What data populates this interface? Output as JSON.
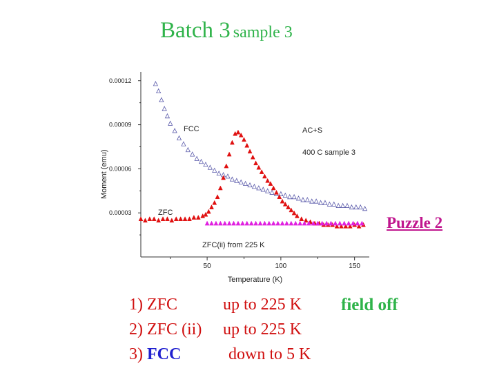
{
  "slide": {
    "title_main": "Batch 3",
    "title_sub": "sample 3",
    "puzzle": "Puzzle 2",
    "field_off": "field off",
    "steps": [
      {
        "num": "1)",
        "label": "ZFC",
        "detail": "up to 225 K"
      },
      {
        "num": "2)",
        "label": "ZFC (ii)",
        "detail": "up to 225 K"
      },
      {
        "num": "3)",
        "label": "FCC",
        "detail": "down to 5 K"
      }
    ]
  },
  "colors": {
    "title": "#2fb34a",
    "puzzle": "#c0168e",
    "steps": "#d01010",
    "fcc_step": "#2020d0",
    "fcc": "#5a5aaa",
    "zfc": "#e01010",
    "zfc2": "#e020e0"
  },
  "chart_data": {
    "type": "scatter",
    "xlabel": "Temperature (K)",
    "ylabel": "Moment (emu)",
    "xlim": [
      5,
      160
    ],
    "ylim": [
      0.0,
      0.000126
    ],
    "xticks": [
      50,
      100,
      150
    ],
    "yticks": [
      3e-05,
      6e-05,
      9e-05,
      0.00012
    ],
    "ytick_labels": [
      "0.00003",
      "0.00006",
      "0.00009",
      "0.00012"
    ],
    "annotations": [
      "FCC",
      "ZFC",
      "ZFC(ii) from 225 K",
      "AC+S",
      "400 C sample 3"
    ],
    "series": [
      {
        "name": "FCC",
        "marker": "open-triangle",
        "color": "#5a5aaa",
        "x": [
          15,
          17,
          19,
          21,
          23,
          25,
          28,
          31,
          34,
          37,
          40,
          43,
          46,
          49,
          52,
          55,
          58,
          61,
          64,
          67,
          70,
          73,
          76,
          79,
          82,
          85,
          88,
          91,
          94,
          97,
          100,
          103,
          106,
          109,
          112,
          115,
          118,
          121,
          124,
          127,
          130,
          133,
          136,
          139,
          142,
          145,
          148,
          151,
          154,
          157
        ],
        "y": [
          0.000118,
          0.000113,
          0.000107,
          0.000101,
          9.6e-05,
          9.1e-05,
          8.6e-05,
          8.1e-05,
          7.7e-05,
          7.3e-05,
          7e-05,
          6.7e-05,
          6.5e-05,
          6.3e-05,
          6.1e-05,
          5.9e-05,
          5.7e-05,
          5.6e-05,
          5.5e-05,
          5.3e-05,
          5.2e-05,
          5.1e-05,
          5e-05,
          4.9e-05,
          4.8e-05,
          4.7e-05,
          4.6e-05,
          4.5e-05,
          4.4e-05,
          4.3e-05,
          4.3e-05,
          4.2e-05,
          4.1e-05,
          4.1e-05,
          4e-05,
          3.9e-05,
          3.9e-05,
          3.8e-05,
          3.8e-05,
          3.7e-05,
          3.7e-05,
          3.6e-05,
          3.6e-05,
          3.5e-05,
          3.5e-05,
          3.5e-05,
          3.4e-05,
          3.4e-05,
          3.4e-05,
          3.3e-05
        ]
      },
      {
        "name": "ZFC",
        "marker": "filled-triangle",
        "color": "#e01010",
        "x": [
          5,
          8,
          11,
          14,
          17,
          20,
          23,
          26,
          29,
          32,
          35,
          38,
          41,
          44,
          47,
          49,
          51,
          53,
          55,
          57,
          59,
          61,
          63,
          65,
          67,
          69,
          71,
          73,
          75,
          77,
          79,
          81,
          83,
          85,
          87,
          89,
          91,
          93,
          95,
          97,
          99,
          101,
          103,
          105,
          107,
          109,
          111,
          114,
          117,
          120,
          123,
          126,
          129,
          132,
          135,
          138,
          141,
          144,
          147,
          150,
          153,
          156
        ],
        "y": [
          2.6e-05,
          2.5e-05,
          2.6e-05,
          2.6e-05,
          2.5e-05,
          2.6e-05,
          2.6e-05,
          2.5e-05,
          2.6e-05,
          2.6e-05,
          2.6e-05,
          2.6e-05,
          2.7e-05,
          2.7e-05,
          2.8e-05,
          2.9e-05,
          3.1e-05,
          3.4e-05,
          3.7e-05,
          4.1e-05,
          4.7e-05,
          5.4e-05,
          6.2e-05,
          7e-05,
          7.8e-05,
          8.4e-05,
          8.5e-05,
          8.3e-05,
          8e-05,
          7.6e-05,
          7.2e-05,
          6.8e-05,
          6.4e-05,
          6.1e-05,
          5.8e-05,
          5.5e-05,
          5.2e-05,
          5e-05,
          4.7e-05,
          4.4e-05,
          4.1e-05,
          3.8e-05,
          3.6e-05,
          3.4e-05,
          3.2e-05,
          3e-05,
          2.8e-05,
          2.6e-05,
          2.5e-05,
          2.4e-05,
          2.3e-05,
          2.3e-05,
          2.2e-05,
          2.2e-05,
          2.2e-05,
          2.1e-05,
          2.1e-05,
          2.1e-05,
          2.1e-05,
          2.2e-05,
          2.1e-05,
          2.2e-05
        ]
      },
      {
        "name": "ZFC(ii) from 225 K",
        "marker": "filled-triangle",
        "color": "#e020e0",
        "x": [
          50,
          53,
          56,
          59,
          62,
          65,
          68,
          71,
          74,
          77,
          80,
          83,
          86,
          89,
          92,
          95,
          98,
          101,
          104,
          107,
          110,
          113,
          116,
          119,
          122,
          125,
          128,
          131,
          134,
          137,
          140,
          143,
          146,
          149,
          152,
          155
        ],
        "y": [
          2.3e-05,
          2.3e-05,
          2.3e-05,
          2.3e-05,
          2.3e-05,
          2.3e-05,
          2.3e-05,
          2.3e-05,
          2.3e-05,
          2.3e-05,
          2.3e-05,
          2.3e-05,
          2.3e-05,
          2.3e-05,
          2.3e-05,
          2.3e-05,
          2.3e-05,
          2.3e-05,
          2.3e-05,
          2.3e-05,
          2.3e-05,
          2.3e-05,
          2.3e-05,
          2.3e-05,
          2.3e-05,
          2.3e-05,
          2.3e-05,
          2.3e-05,
          2.3e-05,
          2.3e-05,
          2.3e-05,
          2.3e-05,
          2.3e-05,
          2.3e-05,
          2.3e-05,
          2.3e-05
        ]
      }
    ]
  }
}
